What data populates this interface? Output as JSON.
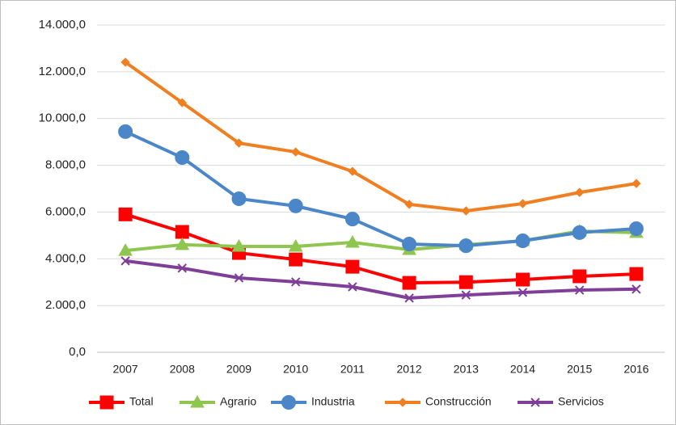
{
  "chart_data": {
    "type": "line",
    "categories": [
      "2007",
      "2008",
      "2009",
      "2010",
      "2011",
      "2012",
      "2013",
      "2014",
      "2015",
      "2016"
    ],
    "series": [
      {
        "name": "Total",
        "color": "#ff0000",
        "marker": "square",
        "values": [
          5900,
          5150,
          4250,
          3970,
          3660,
          2970,
          3000,
          3110,
          3250,
          3350
        ]
      },
      {
        "name": "Agrario",
        "color": "#8fc64f",
        "marker": "triangle",
        "values": [
          4350,
          4600,
          4530,
          4530,
          4700,
          4390,
          4600,
          4770,
          5180,
          5120
        ]
      },
      {
        "name": "Industria",
        "color": "#4a86c8",
        "marker": "circle",
        "values": [
          9440,
          8330,
          6570,
          6260,
          5700,
          4630,
          4560,
          4770,
          5120,
          5290
        ]
      },
      {
        "name": "Construcción",
        "color": "#f07f22",
        "marker": "diamond",
        "values": [
          12410,
          10680,
          8950,
          8570,
          7740,
          6330,
          6050,
          6360,
          6840,
          7220
        ]
      },
      {
        "name": "Servicios",
        "color": "#7f3f98",
        "marker": "x",
        "values": [
          3910,
          3600,
          3180,
          3010,
          2800,
          2320,
          2450,
          2560,
          2660,
          2700
        ]
      }
    ],
    "ylim": [
      0,
      14000
    ],
    "yticks": [
      {
        "value": 0,
        "label": "0,0"
      },
      {
        "value": 2000,
        "label": "2.000,0"
      },
      {
        "value": 4000,
        "label": "4.000,0"
      },
      {
        "value": 6000,
        "label": "6.000,0"
      },
      {
        "value": 8000,
        "label": "8.000,0"
      },
      {
        "value": 10000,
        "label": "10.000,0"
      },
      {
        "value": 12000,
        "label": "12.000,0"
      },
      {
        "value": 14000,
        "label": "14.000,0"
      }
    ],
    "grid": true,
    "legend": "bottom"
  }
}
